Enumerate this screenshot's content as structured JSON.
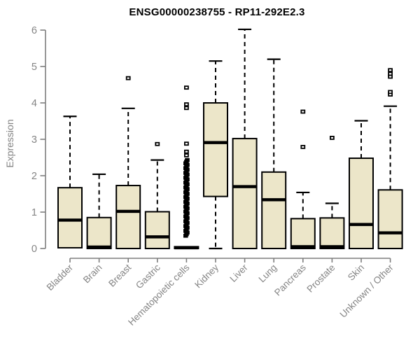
{
  "chart_data": {
    "type": "boxplot",
    "title": "ENSG00000238755 - RP11-292E2.3",
    "ylabel": "Expression",
    "xlabel": "",
    "ylim": [
      0,
      6
    ],
    "yticks": [
      0,
      1,
      2,
      3,
      4,
      5,
      6
    ],
    "grid": false,
    "legend": "none",
    "colors": {
      "box_fill": "#ece6c9",
      "box_stroke": "#000000",
      "median": "#000000",
      "axis": "#7e7e7e",
      "tick_label": "#848484",
      "title": "#000000"
    },
    "categories": [
      "Bladder",
      "Brain",
      "Breast",
      "Gastric",
      "Hematopoietic cells",
      "Kidney",
      "Liver",
      "Lung",
      "Pancreas",
      "Prostate",
      "Skin",
      "Unknown / Other"
    ],
    "series": [
      {
        "category": "Bladder",
        "whisker_low": 0.02,
        "q1": 0.02,
        "median": 0.78,
        "q3": 1.67,
        "whisker_high": 3.63,
        "outliers": []
      },
      {
        "category": "Brain",
        "whisker_low": 0.0,
        "q1": 0.0,
        "median": 0.04,
        "q3": 0.85,
        "whisker_high": 2.04,
        "outliers": []
      },
      {
        "category": "Breast",
        "whisker_low": 0.0,
        "q1": 0.0,
        "median": 1.02,
        "q3": 1.73,
        "whisker_high": 3.85,
        "outliers": [
          4.68
        ]
      },
      {
        "category": "Gastric",
        "whisker_low": 0.0,
        "q1": 0.0,
        "median": 0.32,
        "q3": 1.01,
        "whisker_high": 2.43,
        "outliers": [
          2.87
        ]
      },
      {
        "category": "Hematopoietic cells",
        "whisker_low": 0.0,
        "q1": 0.0,
        "median": 0.02,
        "q3": 0.05,
        "whisker_high": 0.05,
        "outliers": [
          2.56,
          2.66,
          2.88,
          3.86,
          3.96,
          4.42
        ],
        "outliers_dense": {
          "min": 0.35,
          "max": 2.43,
          "count": 48
        }
      },
      {
        "category": "Kidney",
        "whisker_low": 0.0,
        "q1": 1.43,
        "median": 2.91,
        "q3": 4.0,
        "whisker_high": 5.15,
        "outliers": []
      },
      {
        "category": "Liver",
        "whisker_low": 0.0,
        "q1": 0.0,
        "median": 1.7,
        "q3": 3.02,
        "whisker_high": 6.02,
        "outliers": []
      },
      {
        "category": "Lung",
        "whisker_low": 0.0,
        "q1": 0.0,
        "median": 1.34,
        "q3": 2.1,
        "whisker_high": 5.2,
        "outliers": []
      },
      {
        "category": "Pancreas",
        "whisker_low": 0.0,
        "q1": 0.0,
        "median": 0.05,
        "q3": 0.82,
        "whisker_high": 1.54,
        "outliers": [
          2.79,
          3.76
        ]
      },
      {
        "category": "Prostate",
        "whisker_low": 0.0,
        "q1": 0.0,
        "median": 0.05,
        "q3": 0.84,
        "whisker_high": 1.24,
        "outliers": [
          3.04
        ]
      },
      {
        "category": "Skin",
        "whisker_low": 0.0,
        "q1": 0.0,
        "median": 0.66,
        "q3": 2.48,
        "whisker_high": 3.51,
        "outliers": []
      },
      {
        "category": "Unknown / Other",
        "whisker_low": 0.0,
        "q1": 0.0,
        "median": 0.43,
        "q3": 1.61,
        "whisker_high": 3.91,
        "outliers": [
          4.23,
          4.3,
          4.72,
          4.8,
          4.9
        ]
      }
    ]
  }
}
